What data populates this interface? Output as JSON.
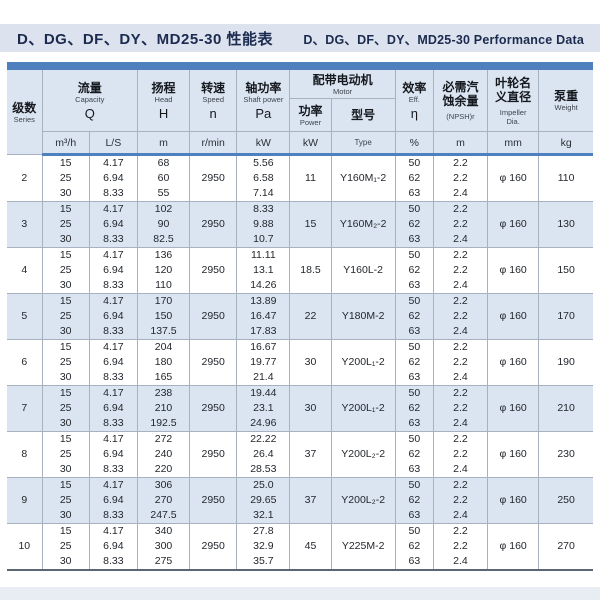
{
  "page_title": {
    "zh": "D、DG、DF、DY、MD25-30 性能表",
    "en": "D、DG、DF、DY、MD25-30 Performance Data"
  },
  "colors": {
    "accent_blue": "#4e80bd",
    "header_bg": "#dbe5f2",
    "alt_row_bg": "#dbe5f2",
    "titlebar_bg": "#dce3ef",
    "grid_line": "#a7b1bf",
    "title_text": "#1b2a4e"
  },
  "table": {
    "headers": {
      "series": {
        "zh": "级数",
        "en": "Series"
      },
      "capacity": {
        "zh": "流量",
        "en": "Capacity",
        "sym": "Q"
      },
      "head": {
        "zh": "扬程",
        "en": "Head",
        "sym": "H"
      },
      "speed": {
        "zh": "转速",
        "en": "Speed",
        "sym": "n"
      },
      "shaft_power": {
        "zh": "轴功率",
        "en": "Shaft power",
        "sym": "Pa"
      },
      "motor": {
        "zh": "配带电动机",
        "en": "Motor"
      },
      "motor_power": {
        "zh": "功率",
        "en": "Power"
      },
      "motor_type": {
        "zh": "型号"
      },
      "efficiency": {
        "zh": "效率",
        "en": "Eff.",
        "sym": "η"
      },
      "npsh": {
        "zh": "必需汽蚀余量",
        "en": "(NPSH)r"
      },
      "impeller": {
        "zh": "叶轮名义直径",
        "en": "Impeller Dia."
      },
      "weight": {
        "zh": "泵重",
        "en": "Weight"
      }
    },
    "units": {
      "flow_m3h": "m³/h",
      "flow_ls": "L/S",
      "head": "m",
      "speed": "r/min",
      "shaft_power": "kW",
      "motor_power": "kW",
      "motor_type": "Type",
      "efficiency": "%",
      "npsh": "m",
      "impeller": "mm",
      "weight": "kg"
    },
    "rows": [
      {
        "series": "2",
        "flow_m3h": [
          "15",
          "25",
          "30"
        ],
        "flow_ls": [
          "4.17",
          "6.94",
          "8.33"
        ],
        "head": [
          "68",
          "60",
          "55"
        ],
        "speed": "2950",
        "shaft_power": [
          "5.56",
          "6.58",
          "7.14"
        ],
        "motor_power": "11",
        "motor_type": "Y160M₁-2",
        "efficiency": [
          "50",
          "62",
          "63"
        ],
        "npsh": [
          "2.2",
          "2.2",
          "2.4"
        ],
        "impeller": "φ 160",
        "weight": "110"
      },
      {
        "series": "3",
        "flow_m3h": [
          "15",
          "25",
          "30"
        ],
        "flow_ls": [
          "4.17",
          "6.94",
          "8.33"
        ],
        "head": [
          "102",
          "90",
          "82.5"
        ],
        "speed": "2950",
        "shaft_power": [
          "8.33",
          "9.88",
          "10.7"
        ],
        "motor_power": "15",
        "motor_type": "Y160M₂-2",
        "efficiency": [
          "50",
          "62",
          "63"
        ],
        "npsh": [
          "2.2",
          "2.2",
          "2.4"
        ],
        "impeller": "φ 160",
        "weight": "130"
      },
      {
        "series": "4",
        "flow_m3h": [
          "15",
          "25",
          "30"
        ],
        "flow_ls": [
          "4.17",
          "6.94",
          "8.33"
        ],
        "head": [
          "136",
          "120",
          "110"
        ],
        "speed": "2950",
        "shaft_power": [
          "11.11",
          "13.1",
          "14.26"
        ],
        "motor_power": "18.5",
        "motor_type": "Y160L-2",
        "efficiency": [
          "50",
          "62",
          "63"
        ],
        "npsh": [
          "2.2",
          "2.2",
          "2.4"
        ],
        "impeller": "φ 160",
        "weight": "150"
      },
      {
        "series": "5",
        "flow_m3h": [
          "15",
          "25",
          "30"
        ],
        "flow_ls": [
          "4.17",
          "6.94",
          "8.33"
        ],
        "head": [
          "170",
          "150",
          "137.5"
        ],
        "speed": "2950",
        "shaft_power": [
          "13.89",
          "16.47",
          "17.83"
        ],
        "motor_power": "22",
        "motor_type": "Y180M-2",
        "efficiency": [
          "50",
          "62",
          "63"
        ],
        "npsh": [
          "2.2",
          "2.2",
          "2.4"
        ],
        "impeller": "φ 160",
        "weight": "170"
      },
      {
        "series": "6",
        "flow_m3h": [
          "15",
          "25",
          "30"
        ],
        "flow_ls": [
          "4.17",
          "6.94",
          "8.33"
        ],
        "head": [
          "204",
          "180",
          "165"
        ],
        "speed": "2950",
        "shaft_power": [
          "16.67",
          "19.77",
          "21.4"
        ],
        "motor_power": "30",
        "motor_type": "Y200L₁-2",
        "efficiency": [
          "50",
          "62",
          "63"
        ],
        "npsh": [
          "2.2",
          "2.2",
          "2.4"
        ],
        "impeller": "φ 160",
        "weight": "190"
      },
      {
        "series": "7",
        "flow_m3h": [
          "15",
          "25",
          "30"
        ],
        "flow_ls": [
          "4.17",
          "6.94",
          "8.33"
        ],
        "head": [
          "238",
          "210",
          "192.5"
        ],
        "speed": "2950",
        "shaft_power": [
          "19.44",
          "23.1",
          "24.96"
        ],
        "motor_power": "30",
        "motor_type": "Y200L₁-2",
        "efficiency": [
          "50",
          "62",
          "63"
        ],
        "npsh": [
          "2.2",
          "2.2",
          "2.4"
        ],
        "impeller": "φ 160",
        "weight": "210"
      },
      {
        "series": "8",
        "flow_m3h": [
          "15",
          "25",
          "30"
        ],
        "flow_ls": [
          "4.17",
          "6.94",
          "8.33"
        ],
        "head": [
          "272",
          "240",
          "220"
        ],
        "speed": "2950",
        "shaft_power": [
          "22.22",
          "26.4",
          "28.53"
        ],
        "motor_power": "37",
        "motor_type": "Y200L₂-2",
        "efficiency": [
          "50",
          "62",
          "63"
        ],
        "npsh": [
          "2.2",
          "2.2",
          "2.4"
        ],
        "impeller": "φ 160",
        "weight": "230"
      },
      {
        "series": "9",
        "flow_m3h": [
          "15",
          "25",
          "30"
        ],
        "flow_ls": [
          "4.17",
          "6.94",
          "8.33"
        ],
        "head": [
          "306",
          "270",
          "247.5"
        ],
        "speed": "2950",
        "shaft_power": [
          "25.0",
          "29.65",
          "32.1"
        ],
        "motor_power": "37",
        "motor_type": "Y200L₂-2",
        "efficiency": [
          "50",
          "62",
          "63"
        ],
        "npsh": [
          "2.2",
          "2.2",
          "2.4"
        ],
        "impeller": "φ 160",
        "weight": "250"
      },
      {
        "series": "10",
        "flow_m3h": [
          "15",
          "25",
          "30"
        ],
        "flow_ls": [
          "4.17",
          "6.94",
          "8.33"
        ],
        "head": [
          "340",
          "300",
          "275"
        ],
        "speed": "2950",
        "shaft_power": [
          "27.8",
          "32.9",
          "35.7"
        ],
        "motor_power": "45",
        "motor_type": "Y225M-2",
        "efficiency": [
          "50",
          "62",
          "63"
        ],
        "npsh": [
          "2.2",
          "2.2",
          "2.4"
        ],
        "impeller": "φ 160",
        "weight": "270"
      }
    ]
  }
}
